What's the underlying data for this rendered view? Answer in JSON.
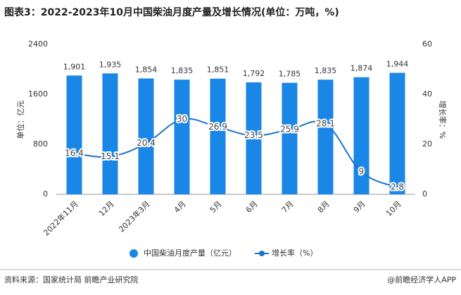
{
  "chart_data": {
    "type": "bar-line",
    "title": "图表3：2022-2023年10月中国柴油月度产量及增长情况(单位：万吨，%)",
    "categories": [
      "2022年11月",
      "12月",
      "2023年3月",
      "4月",
      "5月",
      "6月",
      "7月",
      "8月",
      "9月",
      "10月"
    ],
    "series": [
      {
        "name": "中国柴油月度产量（亿元）",
        "type": "bar",
        "color": "#1a86e6",
        "values": [
          1901,
          1935,
          1854,
          1835,
          1851,
          1792,
          1785,
          1835,
          1874,
          1944
        ],
        "value_labels": [
          "1,901",
          "1,935",
          "1,854",
          "1,835",
          "1,851",
          "1,792",
          "1,785",
          "1,835",
          "1,874",
          "1,944"
        ]
      },
      {
        "name": "增长率（%）",
        "type": "line",
        "axis": "y2",
        "color": "#1a73c8",
        "values": [
          16.4,
          15.1,
          20.4,
          30,
          26.9,
          23.5,
          25.9,
          28.1,
          9,
          2.8
        ]
      }
    ],
    "ylabel": "单位：亿元",
    "y2label": "增长率：%",
    "ylim": [
      0,
      2400
    ],
    "yticks": [
      0,
      800,
      1600,
      2400
    ],
    "y2lim": [
      0,
      60
    ],
    "y2ticks": [
      0,
      20,
      40,
      60
    ],
    "source": "资料来源：国家统计局 前瞻产业研究院",
    "credit": "@前瞻经济学人APP"
  }
}
